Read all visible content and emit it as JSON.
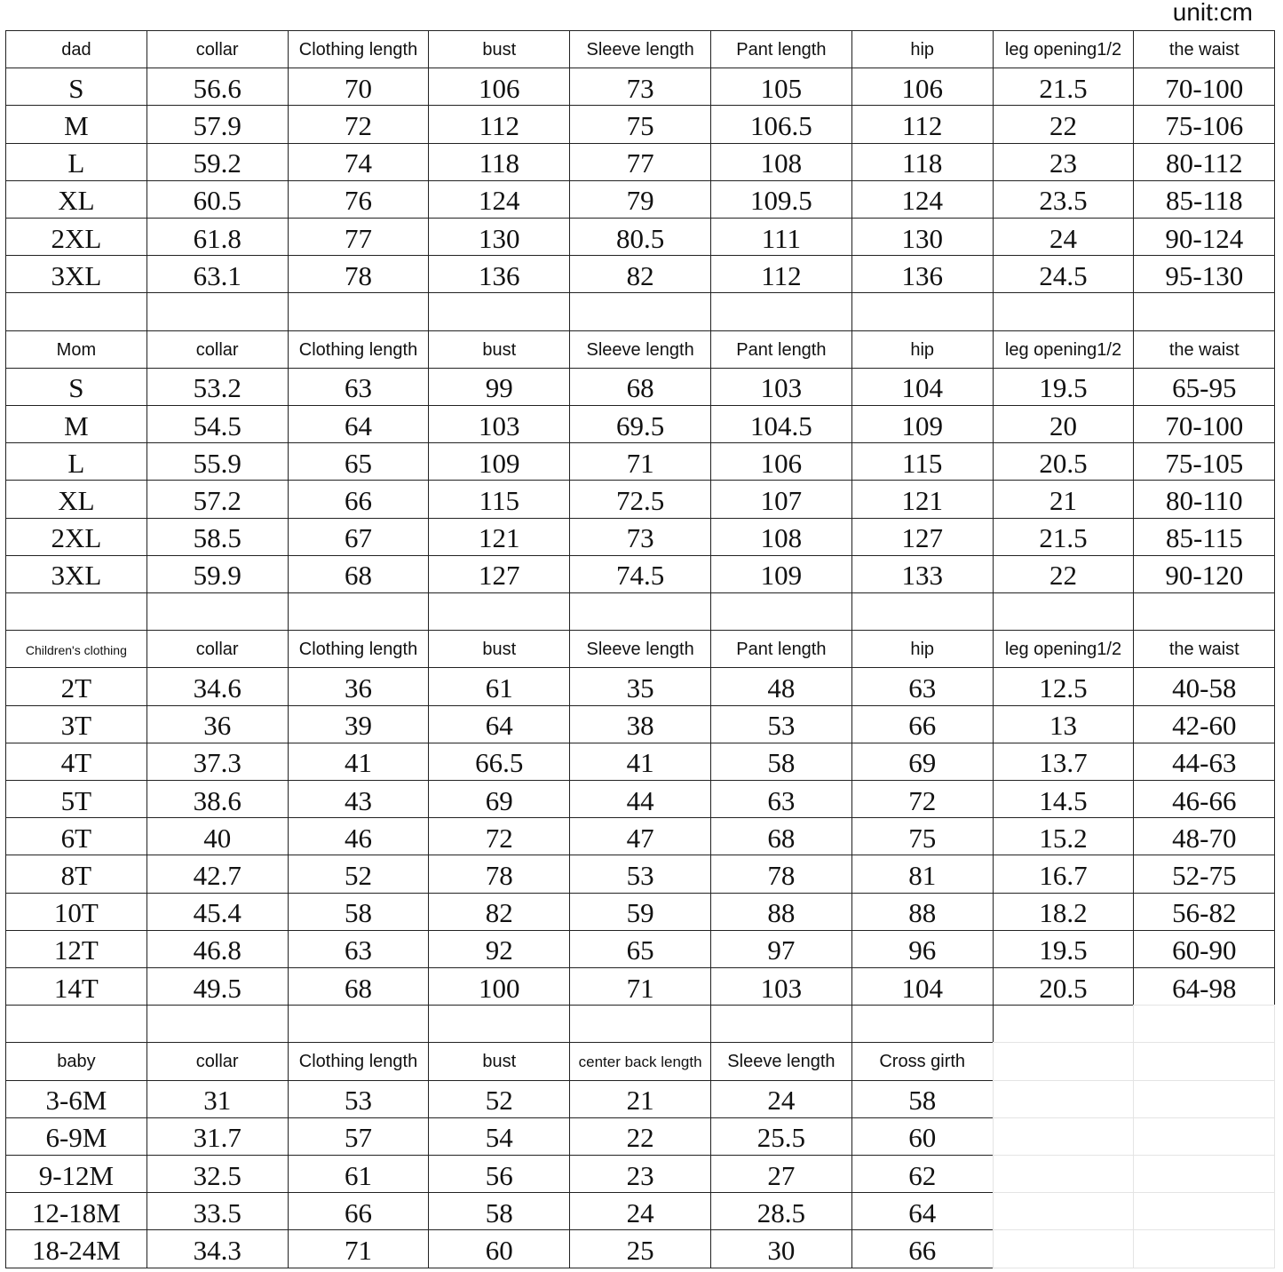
{
  "unit_label": "unit:cm",
  "sections": [
    {
      "headers": [
        "dad",
        "collar",
        "Clothing length",
        "bust",
        "Sleeve length",
        "Pant length",
        "hip",
        "leg opening1/2",
        "the waist"
      ],
      "rows": [
        [
          "S",
          "56.6",
          "70",
          "106",
          "73",
          "105",
          "106",
          "21.5",
          "70-100"
        ],
        [
          "M",
          "57.9",
          "72",
          "112",
          "75",
          "106.5",
          "112",
          "22",
          "75-106"
        ],
        [
          "L",
          "59.2",
          "74",
          "118",
          "77",
          "108",
          "118",
          "23",
          "80-112"
        ],
        [
          "XL",
          "60.5",
          "76",
          "124",
          "79",
          "109.5",
          "124",
          "23.5",
          "85-118"
        ],
        [
          "2XL",
          "61.8",
          "77",
          "130",
          "80.5",
          "111",
          "130",
          "24",
          "90-124"
        ],
        [
          "3XL",
          "63.1",
          "78",
          "136",
          "82",
          "112",
          "136",
          "24.5",
          "95-130"
        ]
      ]
    },
    {
      "headers": [
        "Mom",
        "collar",
        "Clothing length",
        "bust",
        "Sleeve length",
        "Pant length",
        "hip",
        "leg opening1/2",
        "the waist"
      ],
      "rows": [
        [
          "S",
          "53.2",
          "63",
          "99",
          "68",
          "103",
          "104",
          "19.5",
          "65-95"
        ],
        [
          "M",
          "54.5",
          "64",
          "103",
          "69.5",
          "104.5",
          "109",
          "20",
          "70-100"
        ],
        [
          "L",
          "55.9",
          "65",
          "109",
          "71",
          "106",
          "115",
          "20.5",
          "75-105"
        ],
        [
          "XL",
          "57.2",
          "66",
          "115",
          "72.5",
          "107",
          "121",
          "21",
          "80-110"
        ],
        [
          "2XL",
          "58.5",
          "67",
          "121",
          "73",
          "108",
          "127",
          "21.5",
          "85-115"
        ],
        [
          "3XL",
          "59.9",
          "68",
          "127",
          "74.5",
          "109",
          "133",
          "22",
          "90-120"
        ]
      ]
    },
    {
      "headers": [
        "Children's clothing",
        "collar",
        "Clothing length",
        "bust",
        "Sleeve length",
        "Pant length",
        "hip",
        "leg opening1/2",
        "the waist"
      ],
      "rows": [
        [
          "2T",
          "34.6",
          "36",
          "61",
          "35",
          "48",
          "63",
          "12.5",
          "40-58"
        ],
        [
          "3T",
          "36",
          "39",
          "64",
          "38",
          "53",
          "66",
          "13",
          "42-60"
        ],
        [
          "4T",
          "37.3",
          "41",
          "66.5",
          "41",
          "58",
          "69",
          "13.7",
          "44-63"
        ],
        [
          "5T",
          "38.6",
          "43",
          "69",
          "44",
          "63",
          "72",
          "14.5",
          "46-66"
        ],
        [
          "6T",
          "40",
          "46",
          "72",
          "47",
          "68",
          "75",
          "15.2",
          "48-70"
        ],
        [
          "8T",
          "42.7",
          "52",
          "78",
          "53",
          "78",
          "81",
          "16.7",
          "52-75"
        ],
        [
          "10T",
          "45.4",
          "58",
          "82",
          "59",
          "88",
          "88",
          "18.2",
          "56-82"
        ],
        [
          "12T",
          "46.8",
          "63",
          "92",
          "65",
          "97",
          "96",
          "19.5",
          "60-90"
        ],
        [
          "14T",
          "49.5",
          "68",
          "100",
          "71",
          "103",
          "104",
          "20.5",
          "64-98"
        ]
      ]
    },
    {
      "headers": [
        "baby",
        "collar",
        "Clothing length",
        "bust",
        "center back length",
        "Sleeve length",
        "Cross girth"
      ],
      "rows": [
        [
          "3-6M",
          "31",
          "53",
          "52",
          "21",
          "24",
          "58"
        ],
        [
          "6-9M",
          "31.7",
          "57",
          "54",
          "22",
          "25.5",
          "60"
        ],
        [
          "9-12M",
          "32.5",
          "61",
          "56",
          "23",
          "27",
          "62"
        ],
        [
          "12-18M",
          "33.5",
          "66",
          "58",
          "24",
          "28.5",
          "64"
        ],
        [
          "18-24M",
          "34.3",
          "71",
          "60",
          "25",
          "30",
          "66"
        ]
      ]
    }
  ]
}
